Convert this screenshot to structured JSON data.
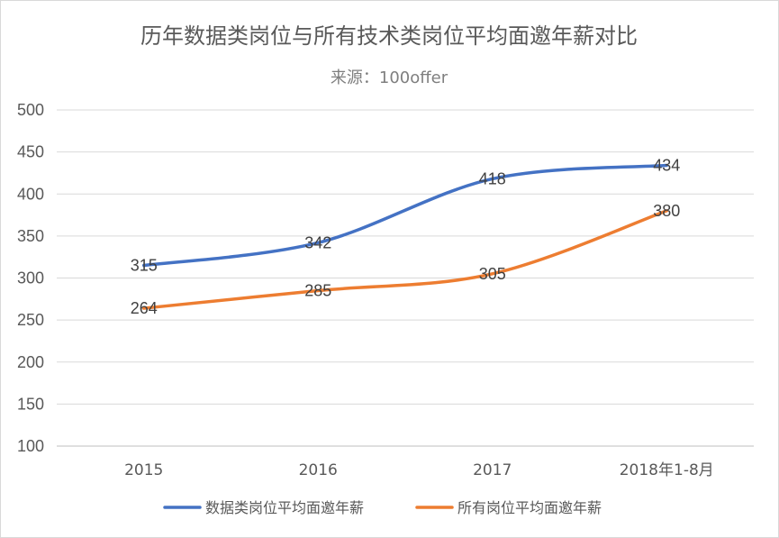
{
  "chart_data": {
    "type": "line",
    "title": "历年数据类岗位与所有技术类岗位平均面邀年薪对比",
    "subtitle": "来源：100offer",
    "categories": [
      "2015",
      "2016",
      "2017",
      "2018年1-8月"
    ],
    "series": [
      {
        "name": "数据类岗位平均面邀年薪",
        "values": [
          315,
          342,
          418,
          434
        ],
        "color": "#4472C4"
      },
      {
        "name": "所有岗位平均面邀年薪",
        "values": [
          264,
          285,
          305,
          380
        ],
        "color": "#ED7D31"
      }
    ],
    "ylim": [
      100,
      500
    ],
    "yticks": [
      100,
      150,
      200,
      250,
      300,
      350,
      400,
      450,
      500
    ],
    "grid": true,
    "smooth": true,
    "data_labels": true,
    "legend": "bottom"
  }
}
